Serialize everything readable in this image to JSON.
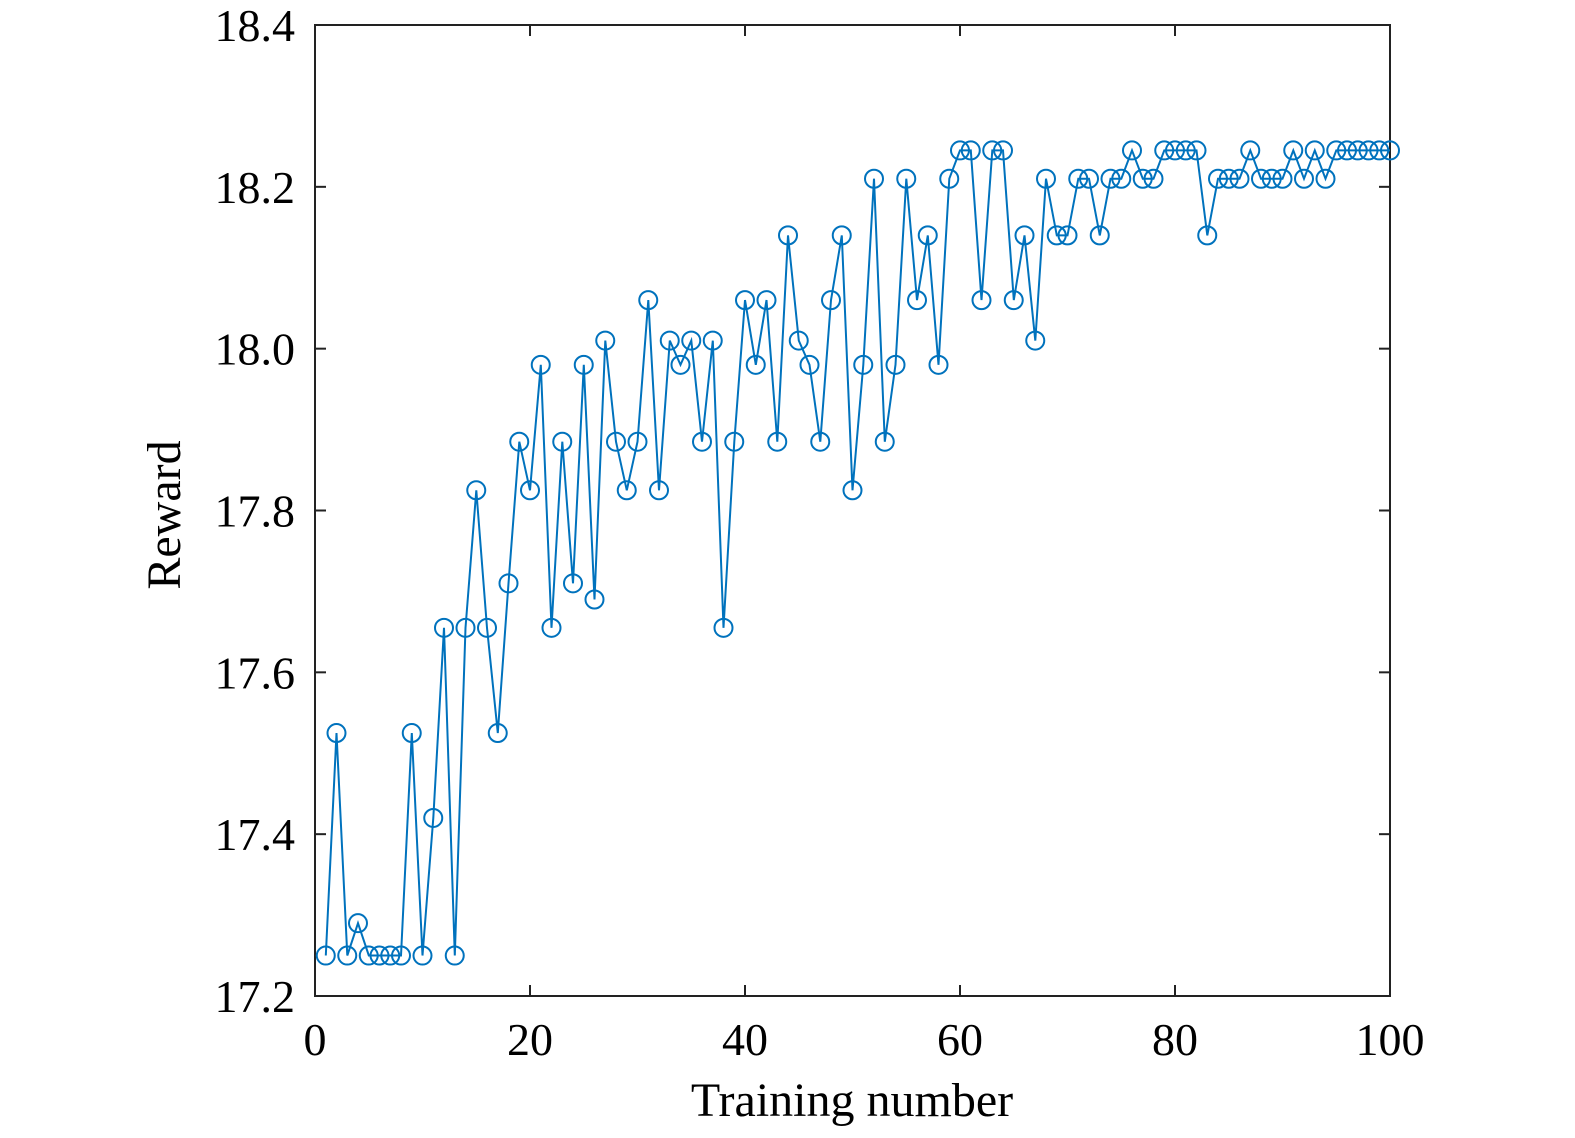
{
  "chart_data": {
    "type": "line",
    "marker": "circle",
    "xlabel": "Training number",
    "ylabel": "Reward",
    "xlim": [
      0,
      100
    ],
    "ylim": [
      17.2,
      18.4
    ],
    "xticks": [
      0,
      20,
      40,
      60,
      80,
      100
    ],
    "xtick_labels": [
      "0",
      "20",
      "40",
      "60",
      "80",
      "100"
    ],
    "yticks": [
      17.2,
      17.4,
      17.6,
      17.8,
      18.0,
      18.2,
      18.4
    ],
    "ytick_labels": [
      "17.2",
      "17.4",
      "17.6",
      "17.8",
      "18.0",
      "18.2",
      "18.4"
    ],
    "grid": false,
    "box": true,
    "series_color": "#0072BD",
    "x": [
      1,
      2,
      3,
      4,
      5,
      6,
      7,
      8,
      9,
      10,
      11,
      12,
      13,
      14,
      15,
      16,
      17,
      18,
      19,
      20,
      21,
      22,
      23,
      24,
      25,
      26,
      27,
      28,
      29,
      30,
      31,
      32,
      33,
      34,
      35,
      36,
      37,
      38,
      39,
      40,
      41,
      42,
      43,
      44,
      45,
      46,
      47,
      48,
      49,
      50,
      51,
      52,
      53,
      54,
      55,
      56,
      57,
      58,
      59,
      60,
      61,
      62,
      63,
      64,
      65,
      66,
      67,
      68,
      69,
      70,
      71,
      72,
      73,
      74,
      75,
      76,
      77,
      78,
      79,
      80,
      81,
      82,
      83,
      84,
      85,
      86,
      87,
      88,
      89,
      90,
      91,
      92,
      93,
      94,
      95,
      96,
      97,
      98,
      99,
      100
    ],
    "y": [
      17.25,
      17.525,
      17.25,
      17.29,
      17.25,
      17.25,
      17.25,
      17.25,
      17.525,
      17.25,
      17.42,
      17.655,
      17.25,
      17.655,
      17.825,
      17.655,
      17.525,
      17.71,
      17.885,
      17.825,
      17.98,
      17.655,
      17.885,
      17.71,
      17.98,
      17.69,
      18.01,
      17.885,
      17.825,
      17.885,
      18.06,
      17.825,
      18.01,
      17.98,
      18.01,
      17.885,
      18.01,
      17.655,
      17.885,
      18.06,
      17.98,
      18.06,
      17.885,
      18.14,
      18.01,
      17.98,
      17.885,
      18.06,
      18.14,
      17.825,
      17.98,
      18.21,
      17.885,
      17.98,
      18.21,
      18.06,
      18.14,
      17.98,
      18.21,
      18.245,
      18.245,
      18.06,
      18.245,
      18.245,
      18.06,
      18.14,
      18.01,
      18.21,
      18.14,
      18.14,
      18.21,
      18.21,
      18.14,
      18.21,
      18.21,
      18.245,
      18.21,
      18.21,
      18.245,
      18.245,
      18.245,
      18.245,
      18.14,
      18.21,
      18.21,
      18.21,
      18.245,
      18.21,
      18.21,
      18.21,
      18.245,
      18.21,
      18.245,
      18.21,
      18.245,
      18.245,
      18.245,
      18.245,
      18.245,
      18.245
    ]
  }
}
